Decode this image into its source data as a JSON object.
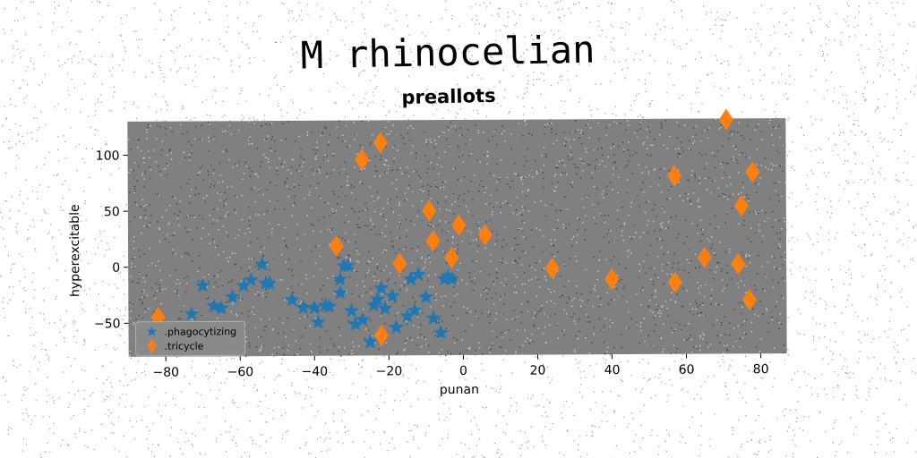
{
  "chart_data": {
    "type": "scatter",
    "title": "M rhinocelian",
    "subtitle": "preallots",
    "xlabel": "punan",
    "ylabel": "hyperexcitable",
    "xlim": [
      -90,
      87
    ],
    "ylim": [
      -80,
      130
    ],
    "xticks": [
      -80,
      -60,
      -40,
      -20,
      0,
      20,
      40,
      60,
      80
    ],
    "yticks": [
      -50,
      0,
      50,
      100
    ],
    "xtick_labels": [
      "−80",
      "−60",
      "−40",
      "−20",
      "0",
      "20",
      "40",
      "60",
      "80"
    ],
    "ytick_labels": [
      "−50",
      "0",
      "50",
      "100"
    ],
    "grid": false,
    "legend_position": "lower-left",
    "plot_background": "#808080",
    "series": [
      {
        "name": ".phagocytizing",
        "marker": "star",
        "color": "#1f77b4",
        "points": [
          [
            -70,
            -17
          ],
          [
            -67,
            -35
          ],
          [
            -65,
            -37
          ],
          [
            -62,
            -27
          ],
          [
            -59,
            -17
          ],
          [
            -57,
            -12
          ],
          [
            -54,
            2
          ],
          [
            -53,
            -15
          ],
          [
            -52,
            -15
          ],
          [
            -46,
            -30
          ],
          [
            -43,
            -37
          ],
          [
            -40,
            -37
          ],
          [
            -39,
            -50
          ],
          [
            -37,
            -35
          ],
          [
            -36,
            -36
          ],
          [
            -33,
            -24
          ],
          [
            -33,
            -12
          ],
          [
            -32,
            0
          ],
          [
            -31,
            0
          ],
          [
            -30,
            -40
          ],
          [
            -29,
            -52
          ],
          [
            -27,
            -48
          ],
          [
            -24,
            -35
          ],
          [
            -23,
            -30
          ],
          [
            -22,
            -20
          ],
          [
            -21,
            -38
          ],
          [
            -19,
            -27
          ],
          [
            -18,
            -55
          ],
          [
            -15,
            -45
          ],
          [
            -14,
            -12
          ],
          [
            -13,
            -40
          ],
          [
            -12,
            -8
          ],
          [
            -10,
            -28
          ],
          [
            -8,
            -47
          ],
          [
            -6,
            -60
          ],
          [
            -5,
            -12
          ],
          [
            -4,
            -10
          ],
          [
            -3,
            -12
          ],
          [
            -25,
            -68
          ],
          [
            -73,
            -42
          ]
        ]
      },
      {
        "name": ".tricycle",
        "marker": "diamond",
        "color": "#ff7f0e",
        "points": [
          [
            -82,
            -45
          ],
          [
            -34,
            18
          ],
          [
            -27,
            95
          ],
          [
            -22,
            110
          ],
          [
            -22,
            -62
          ],
          [
            -17,
            2
          ],
          [
            -9,
            49
          ],
          [
            -8,
            22
          ],
          [
            -3,
            7
          ],
          [
            -1,
            36
          ],
          [
            6,
            27
          ],
          [
            24,
            -3
          ],
          [
            40,
            -13
          ],
          [
            57,
            79
          ],
          [
            57,
            -16
          ],
          [
            65,
            6
          ],
          [
            71,
            129
          ],
          [
            74,
            0
          ],
          [
            75,
            52
          ],
          [
            77,
            -32
          ],
          [
            78,
            82
          ]
        ]
      }
    ]
  }
}
